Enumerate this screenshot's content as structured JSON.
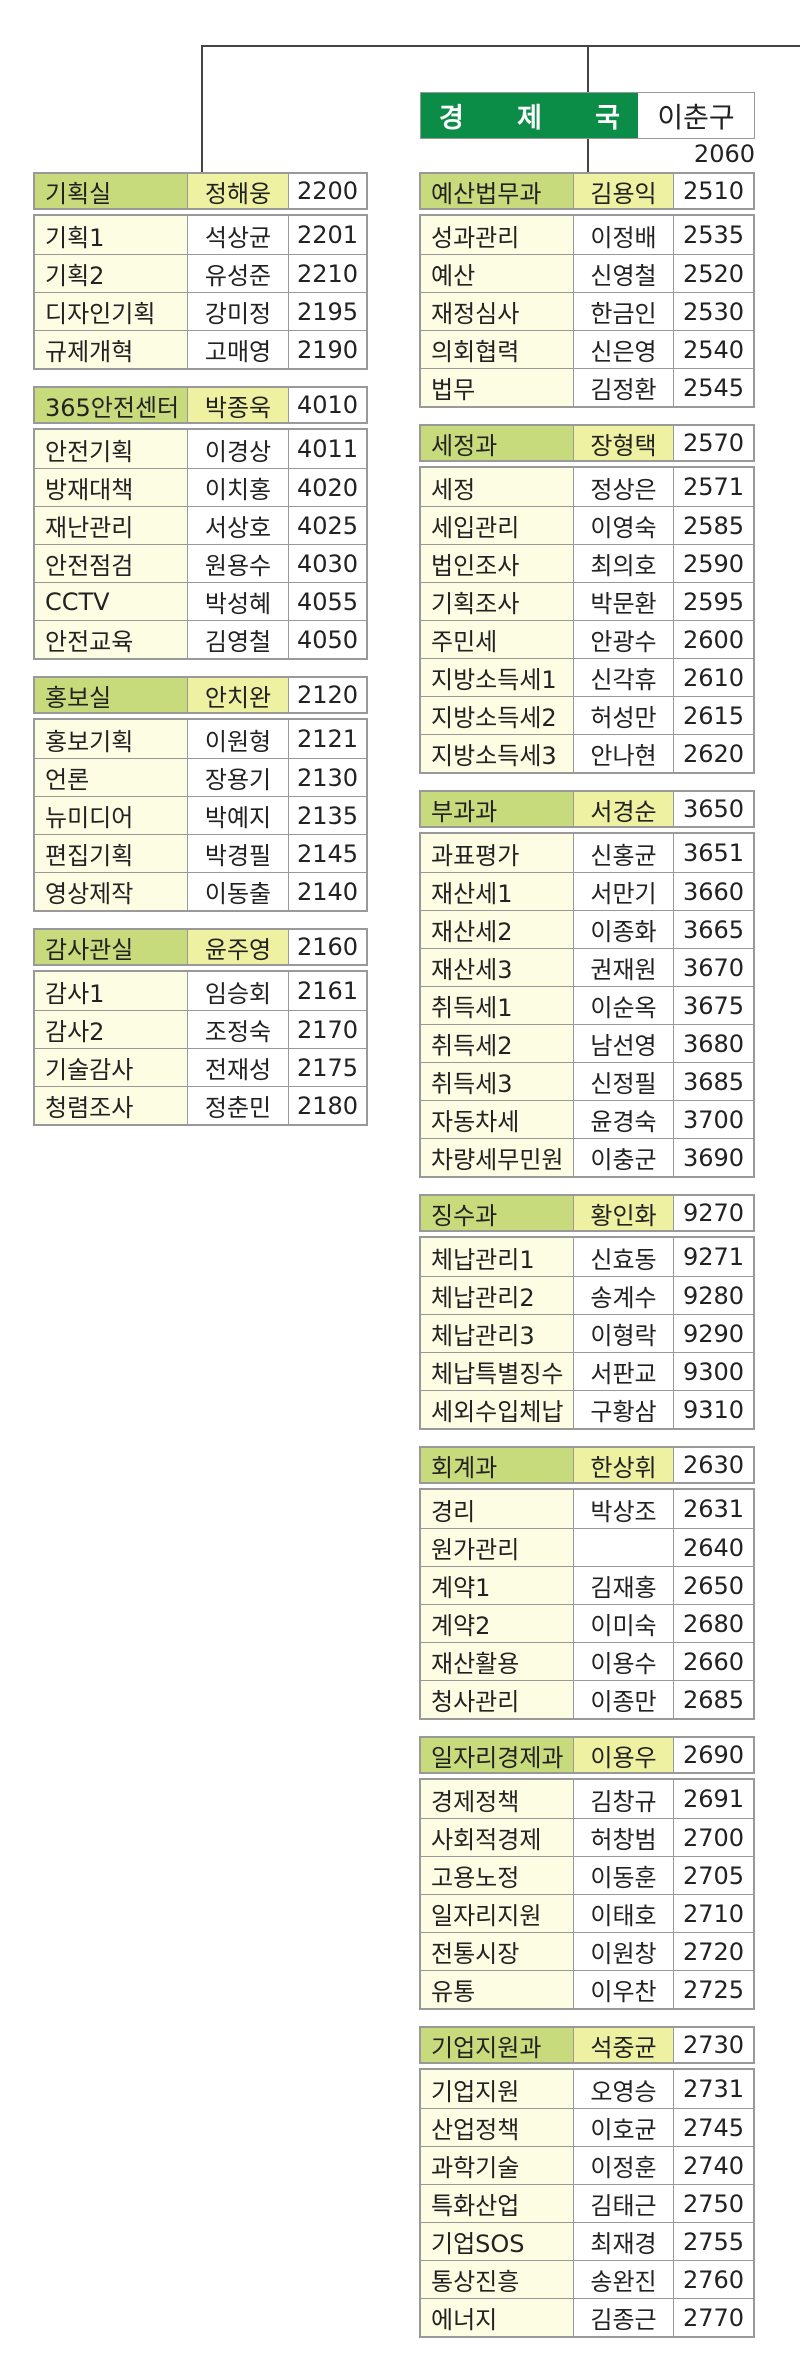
{
  "colors": {
    "director_bg": "#0b8d47",
    "dept_header_bg": "#c8db7c",
    "head_bg": "#eef0a2",
    "team_bg": "#fdfde3",
    "border": "#999999"
  },
  "director": {
    "title": "경제국",
    "name": "이춘구",
    "ext": "2060"
  },
  "left_column": [
    {
      "dept": "기획실",
      "head": "정해웅",
      "ext": "2200",
      "rows": [
        {
          "team": "기획1",
          "person": "석상균",
          "ext": "2201"
        },
        {
          "team": "기획2",
          "person": "유성준",
          "ext": "2210"
        },
        {
          "team": "디자인기획",
          "person": "강미정",
          "ext": "2195"
        },
        {
          "team": "규제개혁",
          "person": "고매영",
          "ext": "2190"
        }
      ]
    },
    {
      "dept": "365안전센터",
      "head": "박종욱",
      "ext": "4010",
      "rows": [
        {
          "team": "안전기획",
          "person": "이경상",
          "ext": "4011"
        },
        {
          "team": "방재대책",
          "person": "이치홍",
          "ext": "4020"
        },
        {
          "team": "재난관리",
          "person": "서상호",
          "ext": "4025"
        },
        {
          "team": "안전점검",
          "person": "원용수",
          "ext": "4030"
        },
        {
          "team": "CCTV",
          "person": "박성혜",
          "ext": "4055"
        },
        {
          "team": "안전교육",
          "person": "김영철",
          "ext": "4050"
        }
      ]
    },
    {
      "dept": "홍보실",
      "head": "안치완",
      "ext": "2120",
      "rows": [
        {
          "team": "홍보기획",
          "person": "이원형",
          "ext": "2121"
        },
        {
          "team": "언론",
          "person": "장용기",
          "ext": "2130"
        },
        {
          "team": "뉴미디어",
          "person": "박예지",
          "ext": "2135"
        },
        {
          "team": "편집기획",
          "person": "박경필",
          "ext": "2145"
        },
        {
          "team": "영상제작",
          "person": "이동출",
          "ext": "2140"
        }
      ]
    },
    {
      "dept": "감사관실",
      "head": "윤주영",
      "ext": "2160",
      "rows": [
        {
          "team": "감사1",
          "person": "임승회",
          "ext": "2161"
        },
        {
          "team": "감사2",
          "person": "조정숙",
          "ext": "2170"
        },
        {
          "team": "기술감사",
          "person": "전재성",
          "ext": "2175"
        },
        {
          "team": "청렴조사",
          "person": "정춘민",
          "ext": "2180"
        }
      ]
    }
  ],
  "right_column": [
    {
      "dept": "예산법무과",
      "head": "김용익",
      "ext": "2510",
      "rows": [
        {
          "team": "성과관리",
          "person": "이정배",
          "ext": "2535"
        },
        {
          "team": "예산",
          "person": "신영철",
          "ext": "2520"
        },
        {
          "team": "재정심사",
          "person": "한금인",
          "ext": "2530"
        },
        {
          "team": "의회협력",
          "person": "신은영",
          "ext": "2540"
        },
        {
          "team": "법무",
          "person": "김정환",
          "ext": "2545"
        }
      ]
    },
    {
      "dept": "세정과",
      "head": "장형택",
      "ext": "2570",
      "rows": [
        {
          "team": "세정",
          "person": "정상은",
          "ext": "2571"
        },
        {
          "team": "세입관리",
          "person": "이영숙",
          "ext": "2585"
        },
        {
          "team": "법인조사",
          "person": "최의호",
          "ext": "2590"
        },
        {
          "team": "기획조사",
          "person": "박문환",
          "ext": "2595"
        },
        {
          "team": "주민세",
          "person": "안광수",
          "ext": "2600"
        },
        {
          "team": "지방소득세1",
          "person": "신각휴",
          "ext": "2610"
        },
        {
          "team": "지방소득세2",
          "person": "허성만",
          "ext": "2615"
        },
        {
          "team": "지방소득세3",
          "person": "안나현",
          "ext": "2620"
        }
      ]
    },
    {
      "dept": "부과과",
      "head": "서경순",
      "ext": "3650",
      "rows": [
        {
          "team": "과표평가",
          "person": "신홍균",
          "ext": "3651"
        },
        {
          "team": "재산세1",
          "person": "서만기",
          "ext": "3660"
        },
        {
          "team": "재산세2",
          "person": "이종화",
          "ext": "3665"
        },
        {
          "team": "재산세3",
          "person": "권재원",
          "ext": "3670"
        },
        {
          "team": "취득세1",
          "person": "이순옥",
          "ext": "3675"
        },
        {
          "team": "취득세2",
          "person": "남선영",
          "ext": "3680"
        },
        {
          "team": "취득세3",
          "person": "신정필",
          "ext": "3685"
        },
        {
          "team": "자동차세",
          "person": "윤경숙",
          "ext": "3700"
        },
        {
          "team": "차량세무민원",
          "person": "이충군",
          "ext": "3690"
        }
      ]
    },
    {
      "dept": "징수과",
      "head": "황인화",
      "ext": "9270",
      "rows": [
        {
          "team": "체납관리1",
          "person": "신효동",
          "ext": "9271"
        },
        {
          "team": "체납관리2",
          "person": "송계수",
          "ext": "9280"
        },
        {
          "team": "체납관리3",
          "person": "이형락",
          "ext": "9290"
        },
        {
          "team": "체납특별징수",
          "person": "서판교",
          "ext": "9300"
        },
        {
          "team": "세외수입체납",
          "person": "구황삼",
          "ext": "9310"
        }
      ]
    },
    {
      "dept": "회계과",
      "head": "한상휘",
      "ext": "2630",
      "rows": [
        {
          "team": "경리",
          "person": "박상조",
          "ext": "2631"
        },
        {
          "team": "원가관리",
          "person": "",
          "ext": "2640"
        },
        {
          "team": "계약1",
          "person": "김재홍",
          "ext": "2650"
        },
        {
          "team": "계약2",
          "person": "이미숙",
          "ext": "2680"
        },
        {
          "team": "재산활용",
          "person": "이용수",
          "ext": "2660"
        },
        {
          "team": "청사관리",
          "person": "이종만",
          "ext": "2685"
        }
      ]
    },
    {
      "dept": "일자리경제과",
      "head": "이용우",
      "ext": "2690",
      "rows": [
        {
          "team": "경제정책",
          "person": "김창규",
          "ext": "2691"
        },
        {
          "team": "사회적경제",
          "person": "허창범",
          "ext": "2700"
        },
        {
          "team": "고용노정",
          "person": "이동훈",
          "ext": "2705"
        },
        {
          "team": "일자리지원",
          "person": "이태호",
          "ext": "2710"
        },
        {
          "team": "전통시장",
          "person": "이원창",
          "ext": "2720"
        },
        {
          "team": "유통",
          "person": "이우찬",
          "ext": "2725"
        }
      ]
    },
    {
      "dept": "기업지원과",
      "head": "석중균",
      "ext": "2730",
      "rows": [
        {
          "team": "기업지원",
          "person": "오영승",
          "ext": "2731"
        },
        {
          "team": "산업정책",
          "person": "이호균",
          "ext": "2745"
        },
        {
          "team": "과학기술",
          "person": "이정훈",
          "ext": "2740"
        },
        {
          "team": "특화산업",
          "person": "김태근",
          "ext": "2750"
        },
        {
          "team": "기업SOS",
          "person": "최재경",
          "ext": "2755"
        },
        {
          "team": "통상진흥",
          "person": "송완진",
          "ext": "2760"
        },
        {
          "team": "에너지",
          "person": "김종근",
          "ext": "2770"
        }
      ]
    }
  ]
}
